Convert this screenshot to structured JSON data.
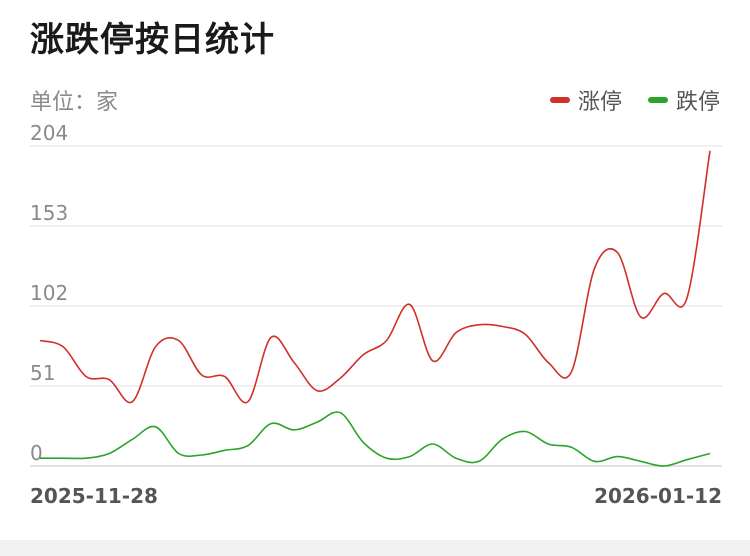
{
  "header": {
    "title": "涨跌停按日统计"
  },
  "unit_label": "单位：家",
  "chart_data": {
    "type": "line",
    "title": "涨跌停按日统计",
    "ylim": [
      0,
      204
    ],
    "yticks": [
      0,
      51,
      102,
      153,
      204
    ],
    "x_start": "2025-11-28",
    "x_end": "2026-01-12",
    "xlabel": "",
    "ylabel": "",
    "grid": true,
    "legend_position": "top-right",
    "series": [
      {
        "name": "涨停",
        "color": "#d0302a",
        "values": [
          80,
          76,
          57,
          55,
          41,
          76,
          80,
          58,
          57,
          41,
          82,
          66,
          48,
          56,
          71,
          80,
          103,
          67,
          85,
          90,
          89,
          84,
          66,
          60,
          126,
          136,
          95,
          110,
          107,
          201
        ]
      },
      {
        "name": "跌停",
        "color": "#2aa52a",
        "values": [
          5,
          5,
          5,
          8,
          17,
          25,
          8,
          7,
          10,
          13,
          27,
          23,
          28,
          34,
          15,
          5,
          6,
          14,
          5,
          3,
          17,
          22,
          14,
          12,
          3,
          6,
          3,
          0,
          4,
          8
        ]
      }
    ]
  }
}
